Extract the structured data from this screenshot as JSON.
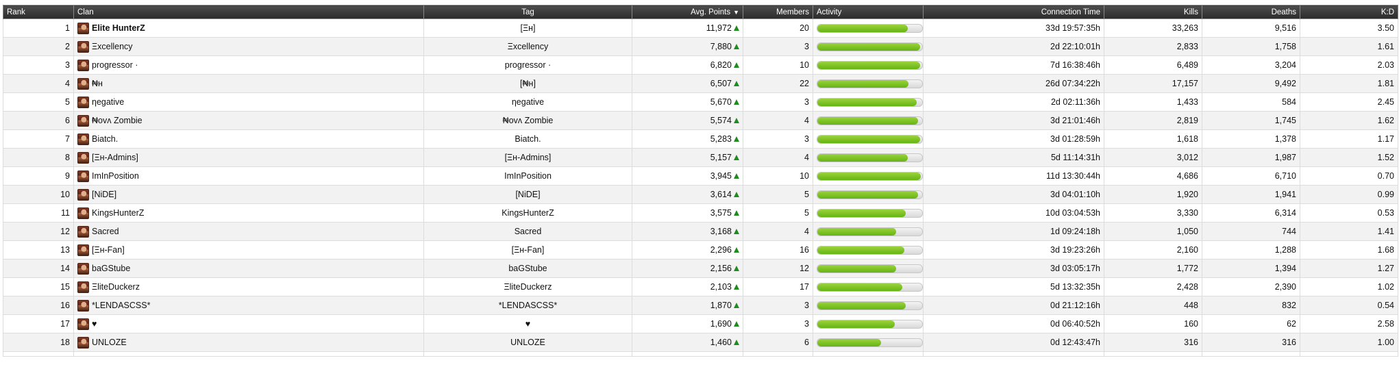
{
  "columns": {
    "rank": "Rank",
    "clan": "Clan",
    "tag": "Tag",
    "avg_points": "Avg. Points",
    "members": "Members",
    "activity": "Activity",
    "connection_time": "Connection Time",
    "kills": "Kills",
    "deaths": "Deaths",
    "kd": "K:D"
  },
  "sort": {
    "column": "avg_points",
    "direction": "desc",
    "icon": "sort-desc-icon"
  },
  "colors": {
    "header": "#333333",
    "activity_bar": "#77c11f",
    "trend_up": "#1f8a1f"
  },
  "rows": [
    {
      "rank": "1",
      "clan": "Elite HunterZ",
      "bold": true,
      "tag": "[Ξн]",
      "avg_points": "11,972",
      "members": "20",
      "activity": 0.86,
      "connection_time": "33d 19:57:35h",
      "kills": "33,263",
      "deaths": "9,516",
      "kd": "3.50"
    },
    {
      "rank": "2",
      "clan": "Ξxcellency",
      "tag": "Ξxcellency",
      "avg_points": "7,880",
      "members": "3",
      "activity": 0.98,
      "connection_time": "2d 22:10:01h",
      "kills": "2,833",
      "deaths": "1,758",
      "kd": "1.61"
    },
    {
      "rank": "3",
      "clan": "progressor ·",
      "tag": "progressor ·",
      "avg_points": "6,820",
      "members": "10",
      "activity": 0.98,
      "connection_time": "7d 16:38:46h",
      "kills": "6,489",
      "deaths": "3,204",
      "kd": "2.03"
    },
    {
      "rank": "4",
      "clan": "₦н",
      "tag": "[₦н]",
      "avg_points": "6,507",
      "members": "22",
      "activity": 0.87,
      "connection_time": "26d 07:34:22h",
      "kills": "17,157",
      "deaths": "9,492",
      "kd": "1.81"
    },
    {
      "rank": "5",
      "clan": "ηegative",
      "tag": "ηegative",
      "avg_points": "5,670",
      "members": "3",
      "activity": 0.95,
      "connection_time": "2d 02:11:36h",
      "kills": "1,433",
      "deaths": "584",
      "kd": "2.45"
    },
    {
      "rank": "6",
      "clan": "₦ovʌ Zombie",
      "tag": "₦ovʌ Zombie",
      "avg_points": "5,574",
      "members": "4",
      "activity": 0.96,
      "connection_time": "3d 21:01:46h",
      "kills": "2,819",
      "deaths": "1,745",
      "kd": "1.62"
    },
    {
      "rank": "7",
      "clan": "Biatch.",
      "tag": "Biatch.",
      "avg_points": "5,283",
      "members": "3",
      "activity": 0.98,
      "connection_time": "3d 01:28:59h",
      "kills": "1,618",
      "deaths": "1,378",
      "kd": "1.17"
    },
    {
      "rank": "8",
      "clan": "[Ξн-Admins]",
      "tag": "[Ξн-Admins]",
      "avg_points": "5,157",
      "members": "4",
      "activity": 0.86,
      "connection_time": "5d 11:14:31h",
      "kills": "3,012",
      "deaths": "1,987",
      "kd": "1.52"
    },
    {
      "rank": "9",
      "clan": "ImInPosition",
      "tag": "ImInPosition",
      "avg_points": "3,945",
      "members": "10",
      "activity": 0.99,
      "connection_time": "11d 13:30:44h",
      "kills": "4,686",
      "deaths": "6,710",
      "kd": "0.70"
    },
    {
      "rank": "10",
      "clan": "[NiDE]",
      "tag": "[NiDE]",
      "avg_points": "3,614",
      "members": "5",
      "activity": 0.96,
      "connection_time": "3d 04:01:10h",
      "kills": "1,920",
      "deaths": "1,941",
      "kd": "0.99"
    },
    {
      "rank": "11",
      "clan": "KingsHunterZ",
      "tag": "KingsHunterZ",
      "avg_points": "3,575",
      "members": "5",
      "activity": 0.84,
      "connection_time": "10d 03:04:53h",
      "kills": "3,330",
      "deaths": "6,314",
      "kd": "0.53"
    },
    {
      "rank": "12",
      "clan": "Sacred",
      "tag": "Sacred",
      "avg_points": "3,168",
      "members": "4",
      "activity": 0.75,
      "connection_time": "1d 09:24:18h",
      "kills": "1,050",
      "deaths": "744",
      "kd": "1.41"
    },
    {
      "rank": "13",
      "clan": "[Ξн-Fan]",
      "tag": "[Ξн-Fan]",
      "avg_points": "2,296",
      "members": "16",
      "activity": 0.83,
      "connection_time": "3d 19:23:26h",
      "kills": "2,160",
      "deaths": "1,288",
      "kd": "1.68"
    },
    {
      "rank": "14",
      "clan": "baGStube",
      "tag": "baGStube",
      "avg_points": "2,156",
      "members": "12",
      "activity": 0.75,
      "connection_time": "3d 03:05:17h",
      "kills": "1,772",
      "deaths": "1,394",
      "kd": "1.27"
    },
    {
      "rank": "15",
      "clan": "ΞliteDuckerz",
      "tag": "ΞliteDuckerz",
      "avg_points": "2,103",
      "members": "17",
      "activity": 0.81,
      "connection_time": "5d 13:32:35h",
      "kills": "2,428",
      "deaths": "2,390",
      "kd": "1.02"
    },
    {
      "rank": "16",
      "clan": "*LENDASCSS*",
      "tag": "*LENDASCSS*",
      "avg_points": "1,870",
      "members": "3",
      "activity": 0.84,
      "connection_time": "0d 21:12:16h",
      "kills": "448",
      "deaths": "832",
      "kd": "0.54"
    },
    {
      "rank": "17",
      "clan": "♥",
      "tag": "♥",
      "avg_points": "1,690",
      "members": "3",
      "activity": 0.74,
      "connection_time": "0d 06:40:52h",
      "kills": "160",
      "deaths": "62",
      "kd": "2.58"
    },
    {
      "rank": "18",
      "clan": "UNLOZE",
      "tag": "UNLOZE",
      "avg_points": "1,460",
      "members": "6",
      "activity": 0.61,
      "connection_time": "0d 12:43:47h",
      "kills": "316",
      "deaths": "316",
      "kd": "1.00"
    }
  ]
}
